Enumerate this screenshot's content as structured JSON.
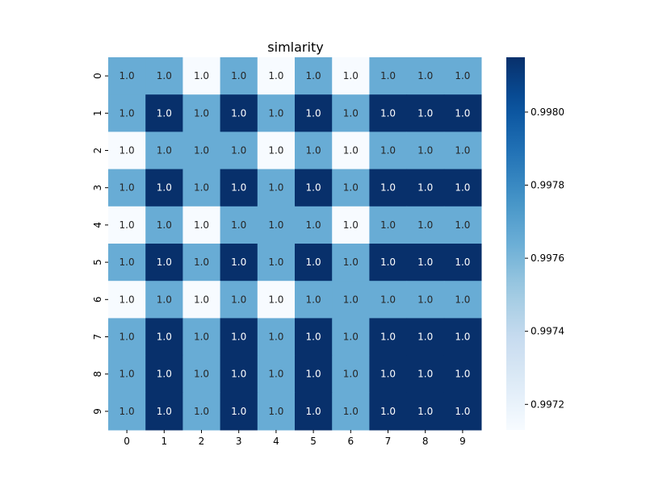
{
  "chart_data": {
    "type": "heatmap",
    "title": "simlarity",
    "xlabel": "",
    "ylabel": "",
    "x_categories": [
      "0",
      "1",
      "2",
      "3",
      "4",
      "5",
      "6",
      "7",
      "8",
      "9"
    ],
    "y_categories": [
      "0",
      "1",
      "2",
      "3",
      "4",
      "5",
      "6",
      "7",
      "8",
      "9"
    ],
    "cell_label": "1.0",
    "colormap": "Blues",
    "color_range": [
      0.99713,
      0.99815
    ],
    "colorbar_ticks": [
      {
        "value": 0.9972,
        "label": "0.9972"
      },
      {
        "value": 0.9974,
        "label": "0.9974"
      },
      {
        "value": 0.9976,
        "label": "0.9976"
      },
      {
        "value": 0.9978,
        "label": "0.9978"
      },
      {
        "value": 0.998,
        "label": "0.9980"
      }
    ],
    "values": [
      [
        0.99765,
        0.99765,
        0.99713,
        0.99765,
        0.99713,
        0.99765,
        0.99713,
        0.99765,
        0.99765,
        0.99765
      ],
      [
        0.99765,
        0.99815,
        0.99765,
        0.99815,
        0.99765,
        0.99815,
        0.99765,
        0.99815,
        0.99815,
        0.99815
      ],
      [
        0.99713,
        0.99765,
        0.99765,
        0.99765,
        0.99713,
        0.99765,
        0.99713,
        0.99765,
        0.99765,
        0.99765
      ],
      [
        0.99765,
        0.99815,
        0.99765,
        0.99815,
        0.99765,
        0.99815,
        0.99765,
        0.99815,
        0.99815,
        0.99815
      ],
      [
        0.99713,
        0.99765,
        0.99713,
        0.99765,
        0.99765,
        0.99765,
        0.99713,
        0.99765,
        0.99765,
        0.99765
      ],
      [
        0.99765,
        0.99815,
        0.99765,
        0.99815,
        0.99765,
        0.99815,
        0.99765,
        0.99815,
        0.99815,
        0.99815
      ],
      [
        0.99713,
        0.99765,
        0.99713,
        0.99765,
        0.99713,
        0.99765,
        0.99765,
        0.99765,
        0.99765,
        0.99765
      ],
      [
        0.99765,
        0.99815,
        0.99765,
        0.99815,
        0.99765,
        0.99815,
        0.99765,
        0.99815,
        0.99815,
        0.99815
      ],
      [
        0.99765,
        0.99815,
        0.99765,
        0.99815,
        0.99765,
        0.99815,
        0.99765,
        0.99815,
        0.99815,
        0.99815
      ],
      [
        0.99765,
        0.99815,
        0.99765,
        0.99815,
        0.99765,
        0.99815,
        0.99765,
        0.99815,
        0.99815,
        0.99815
      ]
    ]
  }
}
